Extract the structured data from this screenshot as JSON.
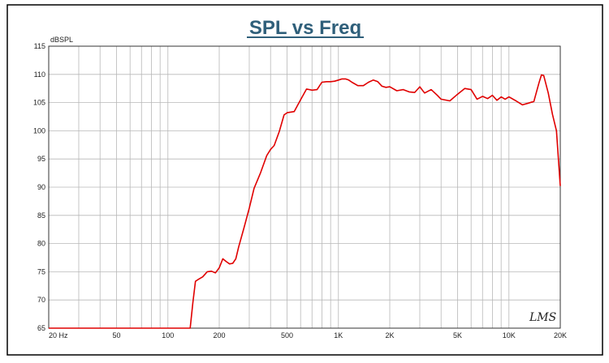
{
  "chart_data": {
    "type": "line",
    "title": "SPL vs Freq",
    "ylabel": "dBSPL",
    "xlabel": "",
    "x_scale": "log",
    "xlim": [
      20,
      20000
    ],
    "ylim": [
      65,
      115
    ],
    "grid": true,
    "watermark": "LMS",
    "line_color": "#e00000",
    "title_color": "#2f5f7a",
    "y_ticks": [
      {
        "value": 65,
        "label": "65"
      },
      {
        "value": 70,
        "label": "70"
      },
      {
        "value": 75,
        "label": "75"
      },
      {
        "value": 80,
        "label": "80"
      },
      {
        "value": 85,
        "label": "85"
      },
      {
        "value": 90,
        "label": "90"
      },
      {
        "value": 95,
        "label": "95"
      },
      {
        "value": 100,
        "label": "100"
      },
      {
        "value": 105,
        "label": "105"
      },
      {
        "value": 110,
        "label": "110"
      },
      {
        "value": 115,
        "label": "115"
      }
    ],
    "x_ticks": [
      {
        "value": 20,
        "label": "20  Hz"
      },
      {
        "value": 50,
        "label": "50"
      },
      {
        "value": 100,
        "label": "100"
      },
      {
        "value": 200,
        "label": "200"
      },
      {
        "value": 500,
        "label": "500"
      },
      {
        "value": 1000,
        "label": "1K"
      },
      {
        "value": 2000,
        "label": "2K"
      },
      {
        "value": 5000,
        "label": "5K"
      },
      {
        "value": 10000,
        "label": "10K"
      },
      {
        "value": 20000,
        "label": "20K"
      }
    ],
    "series": [
      {
        "x": [
          20,
          60,
          100,
          135,
          140,
          145,
          150,
          160,
          170,
          180,
          190,
          200,
          210,
          220,
          230,
          240,
          250,
          260,
          280,
          300,
          320,
          350,
          380,
          400,
          420,
          450,
          480,
          500,
          550,
          600,
          650,
          700,
          750,
          800,
          850,
          900,
          950,
          1000,
          1050,
          1100,
          1150,
          1200,
          1300,
          1400,
          1500,
          1600,
          1700,
          1800,
          1900,
          2000,
          2200,
          2400,
          2600,
          2800,
          3000,
          3200,
          3500,
          3800,
          4000,
          4500,
          5000,
          5500,
          6000,
          6500,
          7000,
          7500,
          8000,
          8500,
          9000,
          9500,
          10000,
          11000,
          12000,
          13000,
          14000,
          14500,
          15000,
          15500,
          16000,
          17000,
          18000,
          19000,
          20000
        ],
        "y": [
          65,
          65,
          65,
          65,
          69.5,
          73.3,
          73.6,
          74.1,
          75.0,
          75.1,
          74.8,
          75.7,
          77.3,
          76.8,
          76.4,
          76.5,
          77.3,
          79.4,
          82.9,
          86.3,
          89.8,
          92.6,
          95.6,
          96.7,
          97.4,
          99.9,
          102.8,
          103.2,
          103.4,
          105.5,
          107.4,
          107.2,
          107.3,
          108.6,
          108.7,
          108.7,
          108.8,
          109.0,
          109.2,
          109.2,
          109.0,
          108.6,
          108.0,
          108.0,
          108.6,
          109.0,
          108.7,
          107.9,
          107.7,
          107.8,
          107.1,
          107.3,
          106.9,
          106.8,
          107.8,
          106.7,
          107.3,
          106.3,
          105.6,
          105.3,
          106.5,
          107.5,
          107.3,
          105.6,
          106.1,
          105.7,
          106.3,
          105.4,
          106.0,
          105.6,
          106.0,
          105.3,
          104.6,
          104.9,
          105.2,
          106.9,
          108.5,
          109.9,
          109.8,
          106.7,
          102.9,
          100.0,
          90.2
        ]
      }
    ]
  }
}
